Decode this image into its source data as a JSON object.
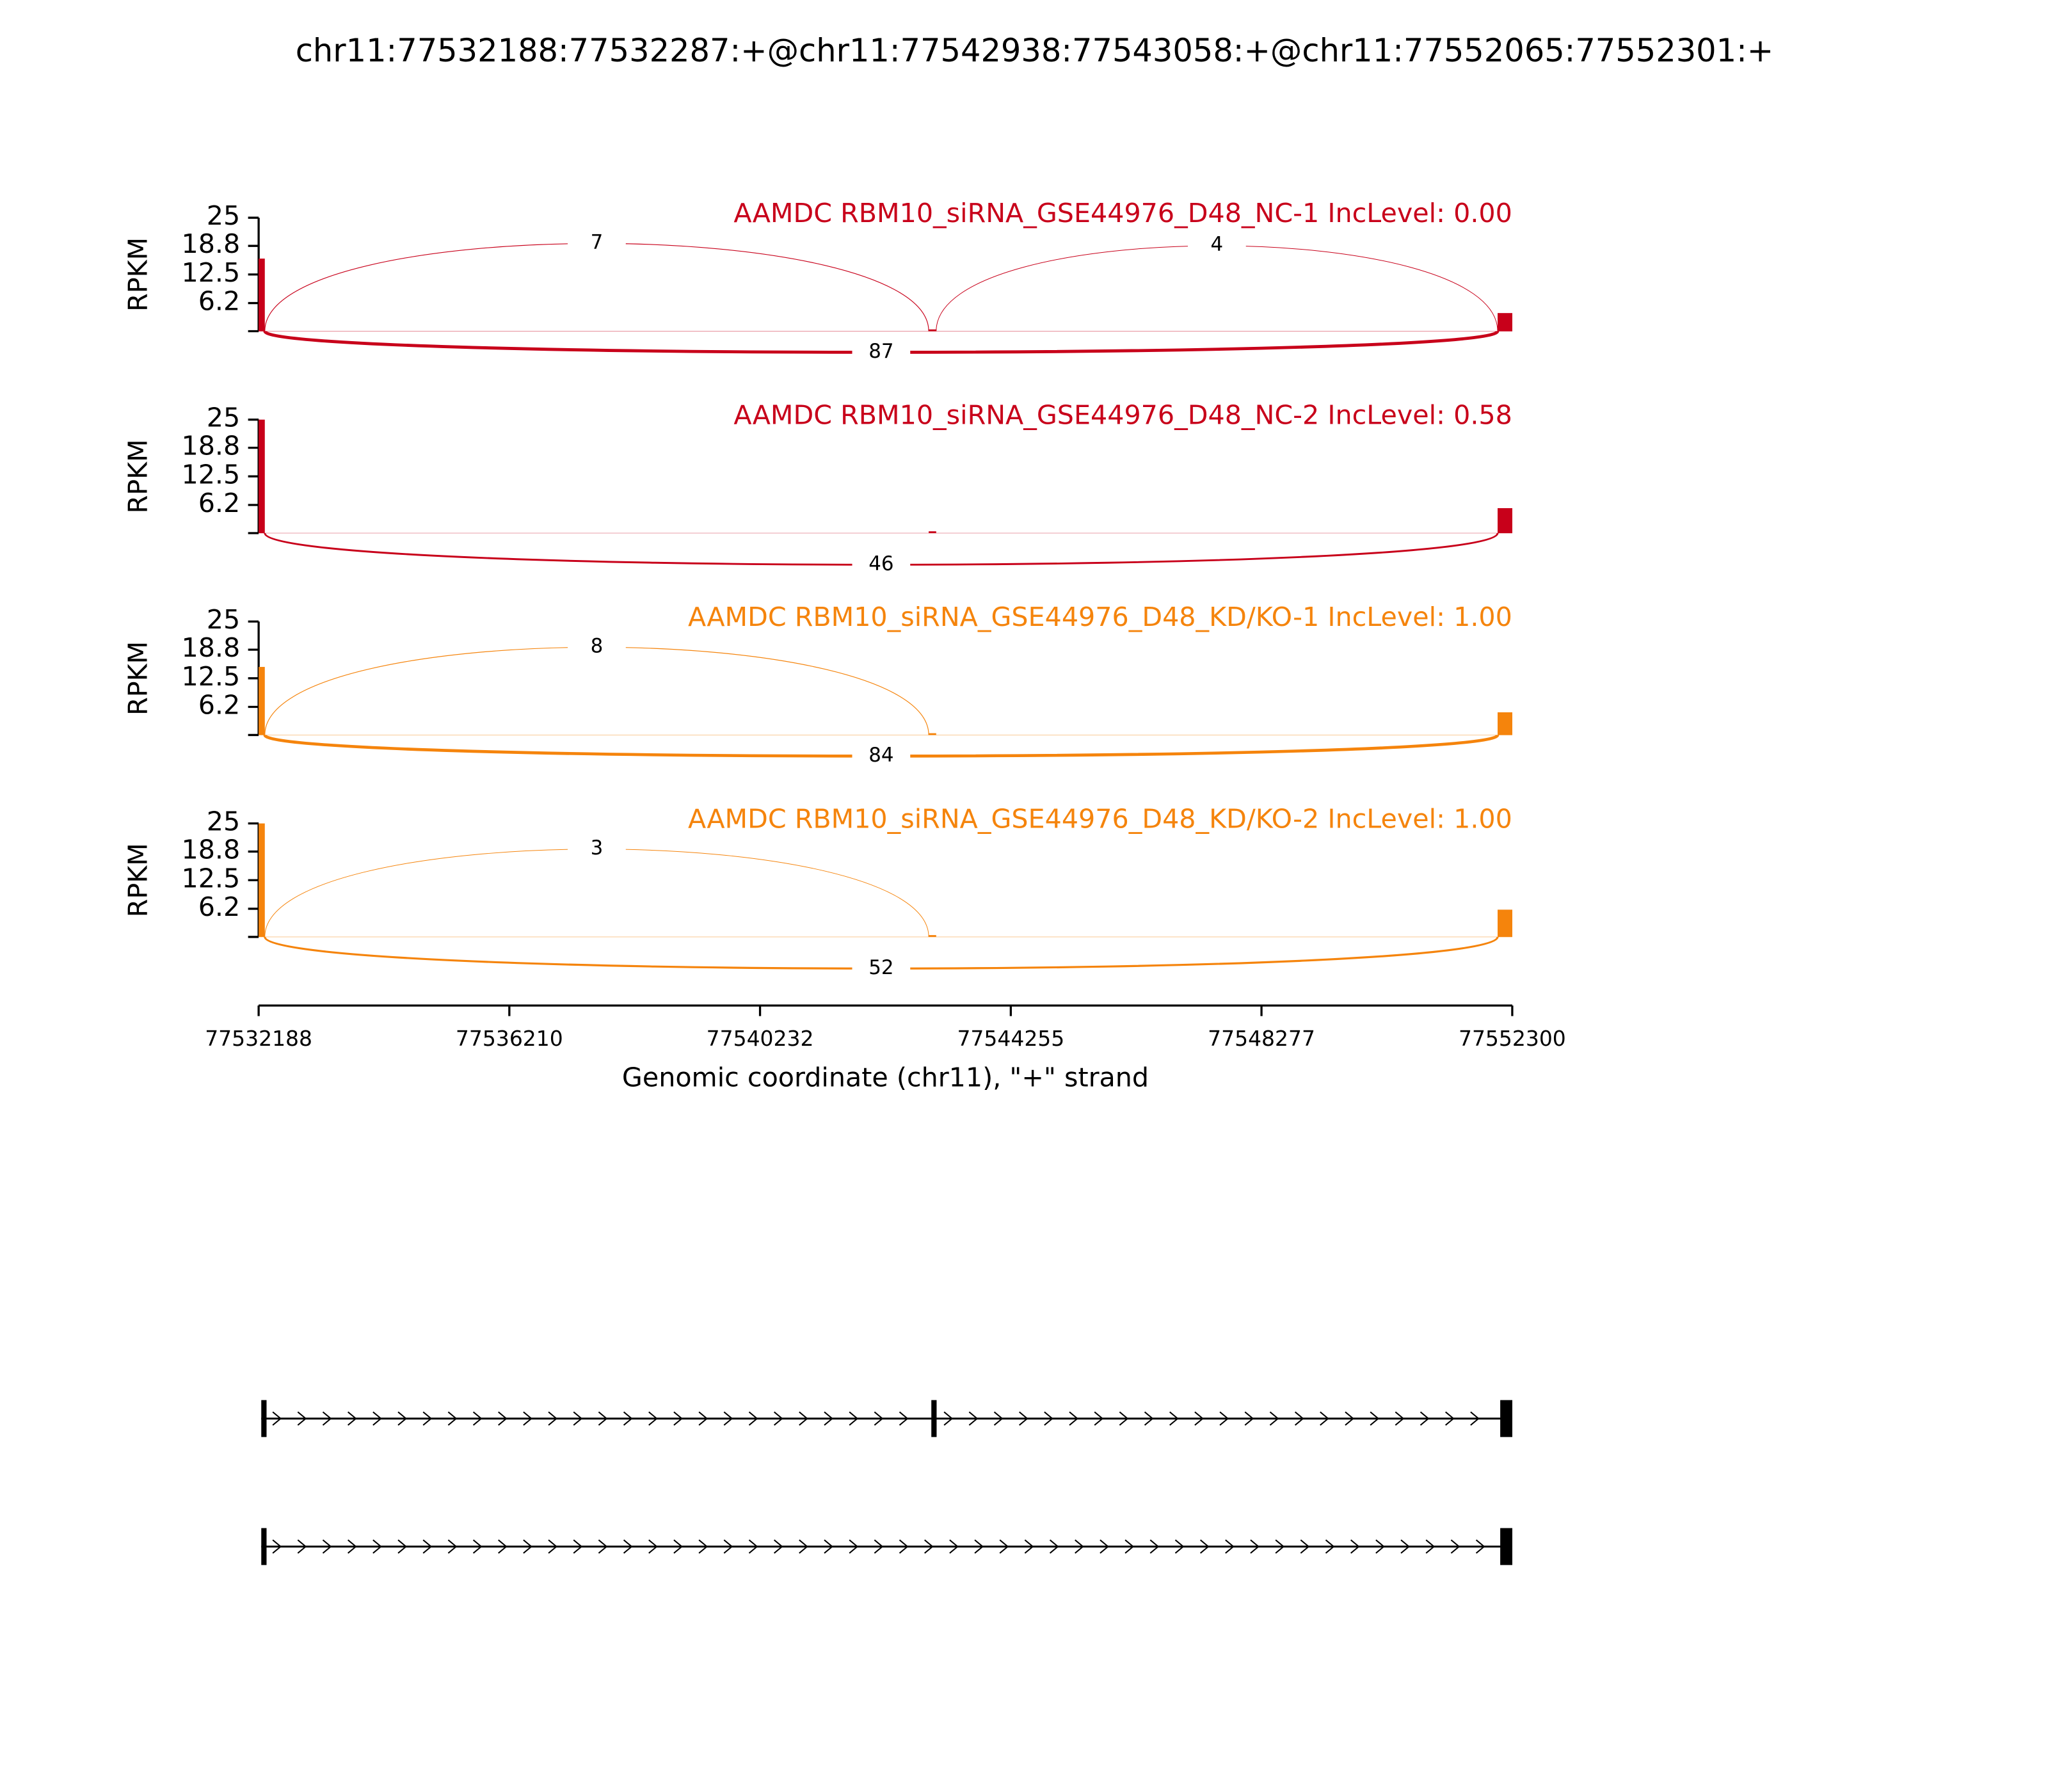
{
  "chart_data": {
    "type": "sashimi",
    "title": "chr11:77532188:77532287:+@chr11:77542938:77543058:+@chr11:77552065:77552301:+",
    "xlabel": "Genomic coordinate (chr11), \"+\" strand",
    "ylabel": "RPKM",
    "xlim": [
      77532188,
      77552300
    ],
    "xticks": [
      77532188,
      77536210,
      77540232,
      77544255,
      77548277,
      77552300
    ],
    "ylim": [
      0,
      25
    ],
    "yticks": [
      6.2,
      12.5,
      18.8,
      25
    ],
    "exons": [
      [
        77532188,
        77532287
      ],
      [
        77542938,
        77543058
      ],
      [
        77552065,
        77552301
      ]
    ],
    "panels": [
      {
        "name": "AAMDC RBM10_siRNA_GSE44976_D48_NC-1 IncLevel: 0.00",
        "color": "#c8001a",
        "coverage": [
          16,
          0.4,
          4
        ],
        "junctions": [
          {
            "start": 77532287,
            "end": 77542938,
            "count": 7,
            "side": "above"
          },
          {
            "start": 77543058,
            "end": 77552065,
            "count": 4,
            "side": "above"
          },
          {
            "start": 77532287,
            "end": 77552065,
            "count": 87,
            "side": "below"
          }
        ]
      },
      {
        "name": "AAMDC RBM10_siRNA_GSE44976_D48_NC-2 IncLevel: 0.58",
        "color": "#c8001a",
        "coverage": [
          25,
          0.4,
          5.5
        ],
        "junctions": [
          {
            "start": 77532287,
            "end": 77552065,
            "count": 46,
            "side": "below"
          }
        ]
      },
      {
        "name": "AAMDC RBM10_siRNA_GSE44976_D48_KD/KO-1 IncLevel: 1.00",
        "color": "#f5840c",
        "coverage": [
          15,
          0.4,
          5
        ],
        "junctions": [
          {
            "start": 77532287,
            "end": 77542938,
            "count": 8,
            "side": "above"
          },
          {
            "start": 77532287,
            "end": 77552065,
            "count": 84,
            "side": "below"
          }
        ]
      },
      {
        "name": "AAMDC RBM10_siRNA_GSE44976_D48_KD/KO-2 IncLevel: 1.00",
        "color": "#f5840c",
        "coverage": [
          25,
          0.4,
          6
        ],
        "junctions": [
          {
            "start": 77532287,
            "end": 77542938,
            "count": 3,
            "side": "above"
          },
          {
            "start": 77532287,
            "end": 77552065,
            "count": 52,
            "side": "below"
          }
        ]
      }
    ],
    "transcripts": [
      {
        "exons": [
          [
            77532188,
            77532287
          ],
          [
            77542938,
            77543058
          ],
          [
            77552065,
            77552301
          ]
        ]
      },
      {
        "exons": [
          [
            77532188,
            77532287
          ],
          [
            77552065,
            77552301
          ]
        ]
      }
    ]
  }
}
